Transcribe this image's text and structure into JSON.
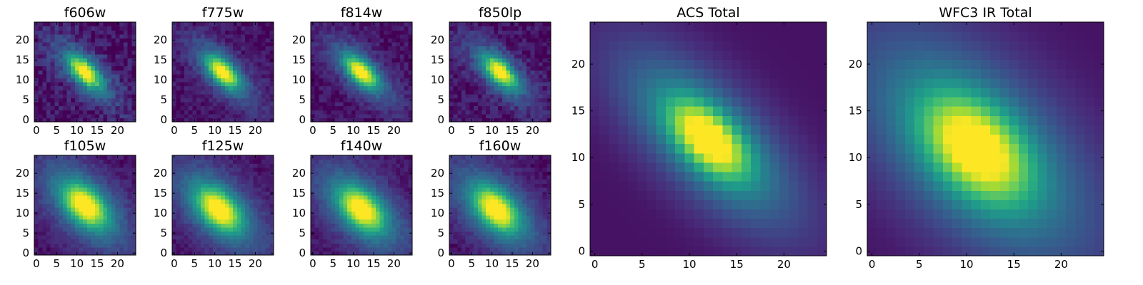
{
  "colormap": "viridis",
  "colors": {
    "low": "#440154",
    "high": "#fde725",
    "background": "#ffffff",
    "axes": "#000000"
  },
  "chart_data": [
    {
      "type": "heatmap",
      "title": "f606w",
      "shape": [
        25,
        25
      ],
      "center": [
        12,
        12
      ],
      "sigma_major": 3.2,
      "sigma_minor": 1.6,
      "angle_deg": -45,
      "noise": 0.06,
      "halo": 0.25,
      "xticks": [
        0,
        5,
        10,
        15,
        20
      ],
      "yticks": [
        0,
        5,
        10,
        15,
        20
      ],
      "xlim": [
        -0.5,
        24.5
      ],
      "ylim": [
        -0.5,
        24.5
      ]
    },
    {
      "type": "heatmap",
      "title": "f775w",
      "shape": [
        25,
        25
      ],
      "center": [
        12,
        12
      ],
      "sigma_major": 3.2,
      "sigma_minor": 1.6,
      "angle_deg": -45,
      "noise": 0.04,
      "halo": 0.25,
      "xticks": [
        0,
        5,
        10,
        15,
        20
      ],
      "yticks": [
        0,
        5,
        10,
        15,
        20
      ],
      "xlim": [
        -0.5,
        24.5
      ],
      "ylim": [
        -0.5,
        24.5
      ]
    },
    {
      "type": "heatmap",
      "title": "f814w",
      "shape": [
        25,
        25
      ],
      "center": [
        12,
        12
      ],
      "sigma_major": 3.2,
      "sigma_minor": 1.6,
      "angle_deg": -45,
      "noise": 0.04,
      "halo": 0.25,
      "xticks": [
        0,
        5,
        10,
        15,
        20
      ],
      "yticks": [
        0,
        5,
        10,
        15,
        20
      ],
      "xlim": [
        -0.5,
        24.5
      ],
      "ylim": [
        -0.5,
        24.5
      ]
    },
    {
      "type": "heatmap",
      "title": "f850lp",
      "shape": [
        25,
        25
      ],
      "center": [
        12,
        12
      ],
      "sigma_major": 3.2,
      "sigma_minor": 1.6,
      "angle_deg": -45,
      "noise": 0.05,
      "halo": 0.25,
      "xticks": [
        0,
        5,
        10,
        15,
        20
      ],
      "yticks": [
        0,
        5,
        10,
        15,
        20
      ],
      "xlim": [
        -0.5,
        24.5
      ],
      "ylim": [
        -0.5,
        24.5
      ]
    },
    {
      "type": "heatmap",
      "title": "f105w",
      "shape": [
        25,
        25
      ],
      "center": [
        12,
        12
      ],
      "sigma_major": 4.2,
      "sigma_minor": 2.6,
      "angle_deg": -45,
      "noise": 0.03,
      "halo": 0.3,
      "xticks": [
        0,
        5,
        10,
        15,
        20
      ],
      "yticks": [
        0,
        5,
        10,
        15,
        20
      ],
      "xlim": [
        -0.5,
        24.5
      ],
      "ylim": [
        -0.5,
        24.5
      ]
    },
    {
      "type": "heatmap",
      "title": "f125w",
      "shape": [
        25,
        25
      ],
      "center": [
        11,
        11
      ],
      "sigma_major": 4.2,
      "sigma_minor": 2.6,
      "angle_deg": -45,
      "noise": 0.03,
      "halo": 0.3,
      "xticks": [
        0,
        5,
        10,
        15,
        20
      ],
      "yticks": [
        0,
        5,
        10,
        15,
        20
      ],
      "xlim": [
        -0.5,
        24.5
      ],
      "ylim": [
        -0.5,
        24.5
      ]
    },
    {
      "type": "heatmap",
      "title": "f140w",
      "shape": [
        25,
        25
      ],
      "center": [
        12,
        11
      ],
      "sigma_major": 4.2,
      "sigma_minor": 2.6,
      "angle_deg": -45,
      "noise": 0.03,
      "halo": 0.3,
      "xticks": [
        0,
        5,
        10,
        15,
        20
      ],
      "yticks": [
        0,
        5,
        10,
        15,
        20
      ],
      "xlim": [
        -0.5,
        24.5
      ],
      "ylim": [
        -0.5,
        24.5
      ]
    },
    {
      "type": "heatmap",
      "title": "f160w",
      "shape": [
        25,
        25
      ],
      "center": [
        11,
        11
      ],
      "sigma_major": 4.2,
      "sigma_minor": 2.6,
      "angle_deg": -45,
      "noise": 0.03,
      "halo": 0.3,
      "xticks": [
        0,
        5,
        10,
        15,
        20
      ],
      "yticks": [
        0,
        5,
        10,
        15,
        20
      ],
      "xlim": [
        -0.5,
        24.5
      ],
      "ylim": [
        -0.5,
        24.5
      ]
    },
    {
      "type": "heatmap",
      "title": "ACS Total",
      "shape": [
        25,
        25
      ],
      "center": [
        12,
        12
      ],
      "sigma_major": 3.4,
      "sigma_minor": 1.8,
      "angle_deg": -45,
      "noise": 0.0,
      "halo": 0.35,
      "xticks": [
        0,
        5,
        10,
        15,
        20
      ],
      "yticks": [
        0,
        5,
        10,
        15,
        20
      ],
      "xlim": [
        -0.5,
        24.5
      ],
      "ylim": [
        -0.5,
        24.5
      ]
    },
    {
      "type": "heatmap",
      "title": "WFC3 IR Total",
      "shape": [
        25,
        25
      ],
      "center": [
        11,
        11
      ],
      "sigma_major": 4.4,
      "sigma_minor": 2.8,
      "angle_deg": -45,
      "noise": 0.0,
      "halo": 0.35,
      "xticks": [
        0,
        5,
        10,
        15,
        20
      ],
      "yticks": [
        0,
        5,
        10,
        15,
        20
      ],
      "xlim": [
        -0.5,
        24.5
      ],
      "ylim": [
        -0.5,
        24.5
      ]
    }
  ]
}
